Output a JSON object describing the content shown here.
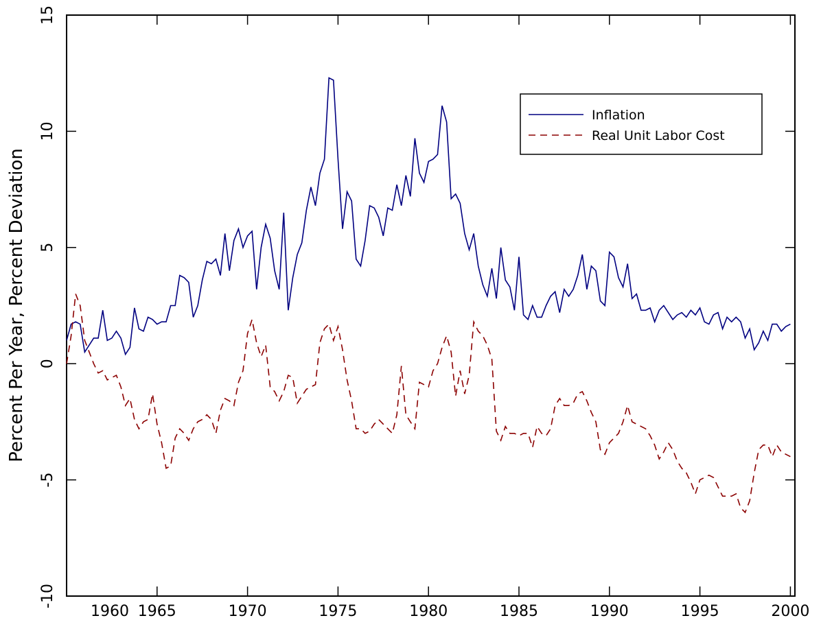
{
  "chart_data": {
    "type": "line",
    "ylabel": "Percent Per Year, Percent Deviation",
    "x": [
      1960,
      1960.25,
      1960.5,
      1960.75,
      1961,
      1961.25,
      1961.5,
      1961.75,
      1962,
      1962.25,
      1962.5,
      1962.75,
      1963,
      1963.25,
      1963.5,
      1963.75,
      1964,
      1964.25,
      1964.5,
      1964.75,
      1965,
      1965.25,
      1965.5,
      1965.75,
      1966,
      1966.25,
      1966.5,
      1966.75,
      1967,
      1967.25,
      1967.5,
      1967.75,
      1968,
      1968.25,
      1968.5,
      1968.75,
      1969,
      1969.25,
      1969.5,
      1969.75,
      1970,
      1970.25,
      1970.5,
      1970.75,
      1971,
      1971.25,
      1971.5,
      1971.75,
      1972,
      1972.25,
      1972.5,
      1972.75,
      1973,
      1973.25,
      1973.5,
      1973.75,
      1974,
      1974.25,
      1974.5,
      1974.75,
      1975,
      1975.25,
      1975.5,
      1975.75,
      1976,
      1976.25,
      1976.5,
      1976.75,
      1977,
      1977.25,
      1977.5,
      1977.75,
      1978,
      1978.25,
      1978.5,
      1978.75,
      1979,
      1979.25,
      1979.5,
      1979.75,
      1980,
      1980.25,
      1980.5,
      1980.75,
      1981,
      1981.25,
      1981.5,
      1981.75,
      1982,
      1982.25,
      1982.5,
      1982.75,
      1983,
      1983.25,
      1983.5,
      1983.75,
      1984,
      1984.25,
      1984.5,
      1984.75,
      1985,
      1985.25,
      1985.5,
      1985.75,
      1986,
      1986.25,
      1986.5,
      1986.75,
      1987,
      1987.25,
      1987.5,
      1987.75,
      1988,
      1988.25,
      1988.5,
      1988.75,
      1989,
      1989.25,
      1989.5,
      1989.75,
      1990,
      1990.25,
      1990.5,
      1990.75,
      1991,
      1991.25,
      1991.5,
      1991.75,
      1992,
      1992.25,
      1992.5,
      1992.75,
      1993,
      1993.25,
      1993.5,
      1993.75,
      1994,
      1994.25,
      1994.5,
      1994.75,
      1995,
      1995.25,
      1995.5,
      1995.75,
      1996,
      1996.25,
      1996.5,
      1996.75,
      1997,
      1997.25,
      1997.5,
      1997.75,
      1998,
      1998.25,
      1998.5,
      1998.75,
      1999,
      1999.25,
      1999.5,
      1999.75,
      2000
    ],
    "series": [
      {
        "name": "Inflation",
        "color": "#000080",
        "dash": "solid",
        "values": [
          1.0,
          1.7,
          1.8,
          1.7,
          0.5,
          0.8,
          1.1,
          1.1,
          2.3,
          1.0,
          1.1,
          1.4,
          1.1,
          0.4,
          0.7,
          2.4,
          1.5,
          1.4,
          2.0,
          1.9,
          1.7,
          1.8,
          1.8,
          2.5,
          2.5,
          3.8,
          3.7,
          3.5,
          2.0,
          2.5,
          3.6,
          4.4,
          4.3,
          4.5,
          3.8,
          5.6,
          4.0,
          5.3,
          5.8,
          5.0,
          5.5,
          5.7,
          3.2,
          5.0,
          6.0,
          5.4,
          4.0,
          3.2,
          6.5,
          2.3,
          3.7,
          4.7,
          5.2,
          6.6,
          7.6,
          6.8,
          8.2,
          8.8,
          12.3,
          12.2,
          8.8,
          5.8,
          7.4,
          7.0,
          4.5,
          4.2,
          5.3,
          6.8,
          6.7,
          6.3,
          5.5,
          6.7,
          6.6,
          7.7,
          6.8,
          8.1,
          7.2,
          9.7,
          8.2,
          7.8,
          8.7,
          8.8,
          9.0,
          11.1,
          10.4,
          7.1,
          7.3,
          6.9,
          5.6,
          4.9,
          5.6,
          4.2,
          3.4,
          2.9,
          4.1,
          2.8,
          5.0,
          3.6,
          3.3,
          2.3,
          4.6,
          2.1,
          1.9,
          2.5,
          2.0,
          2.0,
          2.5,
          2.9,
          3.1,
          2.2,
          3.2,
          2.9,
          3.2,
          3.8,
          4.7,
          3.2,
          4.2,
          4.0,
          2.7,
          2.5,
          4.8,
          4.6,
          3.7,
          3.3,
          4.3,
          2.8,
          3.0,
          2.3,
          2.3,
          2.4,
          1.8,
          2.3,
          2.5,
          2.2,
          1.9,
          2.1,
          2.2,
          2.0,
          2.3,
          2.1,
          2.4,
          1.8,
          1.7,
          2.1,
          2.2,
          1.5,
          2.0,
          1.8,
          2.0,
          1.8,
          1.1,
          1.5,
          0.6,
          0.9,
          1.4,
          1.0,
          1.7,
          1.7,
          1.4,
          1.6,
          1.7
        ]
      },
      {
        "name": "Real Unit Labor Cost",
        "color": "#8b0000",
        "dash": "dashed",
        "values": [
          0.0,
          1.2,
          3.0,
          2.5,
          1.0,
          0.5,
          0.0,
          -0.4,
          -0.3,
          -0.7,
          -0.6,
          -0.5,
          -1.0,
          -1.8,
          -1.5,
          -2.4,
          -2.8,
          -2.5,
          -2.4,
          -1.3,
          -2.6,
          -3.4,
          -4.5,
          -4.4,
          -3.2,
          -2.8,
          -3.0,
          -3.3,
          -2.8,
          -2.5,
          -2.4,
          -2.2,
          -2.4,
          -3.0,
          -2.0,
          -1.5,
          -1.6,
          -1.8,
          -0.8,
          -0.3,
          1.3,
          1.9,
          0.9,
          0.3,
          0.8,
          -1.0,
          -1.2,
          -1.6,
          -1.2,
          -0.5,
          -0.6,
          -1.7,
          -1.4,
          -1.1,
          -1.0,
          -0.9,
          0.9,
          1.5,
          1.7,
          1.0,
          1.6,
          0.6,
          -0.7,
          -1.6,
          -2.8,
          -2.8,
          -3.0,
          -2.9,
          -2.6,
          -2.4,
          -2.6,
          -2.8,
          -3.0,
          -2.2,
          -0.1,
          -2.2,
          -2.5,
          -2.8,
          -0.8,
          -0.9,
          -1.0,
          -0.3,
          0.0,
          0.7,
          1.2,
          0.5,
          -1.4,
          -0.3,
          -1.3,
          -0.5,
          1.8,
          1.4,
          1.2,
          0.8,
          0.2,
          -2.9,
          -3.3,
          -2.7,
          -3.0,
          -3.0,
          -3.1,
          -3.0,
          -3.0,
          -3.6,
          -2.7,
          -3.0,
          -3.1,
          -2.8,
          -1.8,
          -1.5,
          -1.8,
          -1.8,
          -1.7,
          -1.3,
          -1.2,
          -1.6,
          -2.1,
          -2.5,
          -3.7,
          -3.9,
          -3.4,
          -3.2,
          -3.0,
          -2.5,
          -1.8,
          -2.5,
          -2.6,
          -2.7,
          -2.8,
          -3.1,
          -3.5,
          -4.1,
          -3.8,
          -3.4,
          -3.7,
          -4.2,
          -4.5,
          -4.7,
          -5.1,
          -5.6,
          -5.0,
          -4.9,
          -4.8,
          -4.9,
          -5.3,
          -5.7,
          -5.7,
          -5.7,
          -5.6,
          -6.2,
          -6.4,
          -5.9,
          -4.7,
          -3.7,
          -3.5,
          -3.5,
          -4.0,
          -3.5,
          -3.8,
          -3.9,
          -4.0
        ]
      }
    ],
    "xlim": [
      1960,
      2000.25
    ],
    "xticks": [
      1960,
      1965,
      1970,
      1975,
      1980,
      1985,
      1990,
      1995,
      2000
    ],
    "ylim": [
      -10,
      15
    ],
    "yticks": [
      -10,
      -5,
      0,
      5,
      10,
      15
    ],
    "grid": false,
    "legend": "upper right"
  }
}
